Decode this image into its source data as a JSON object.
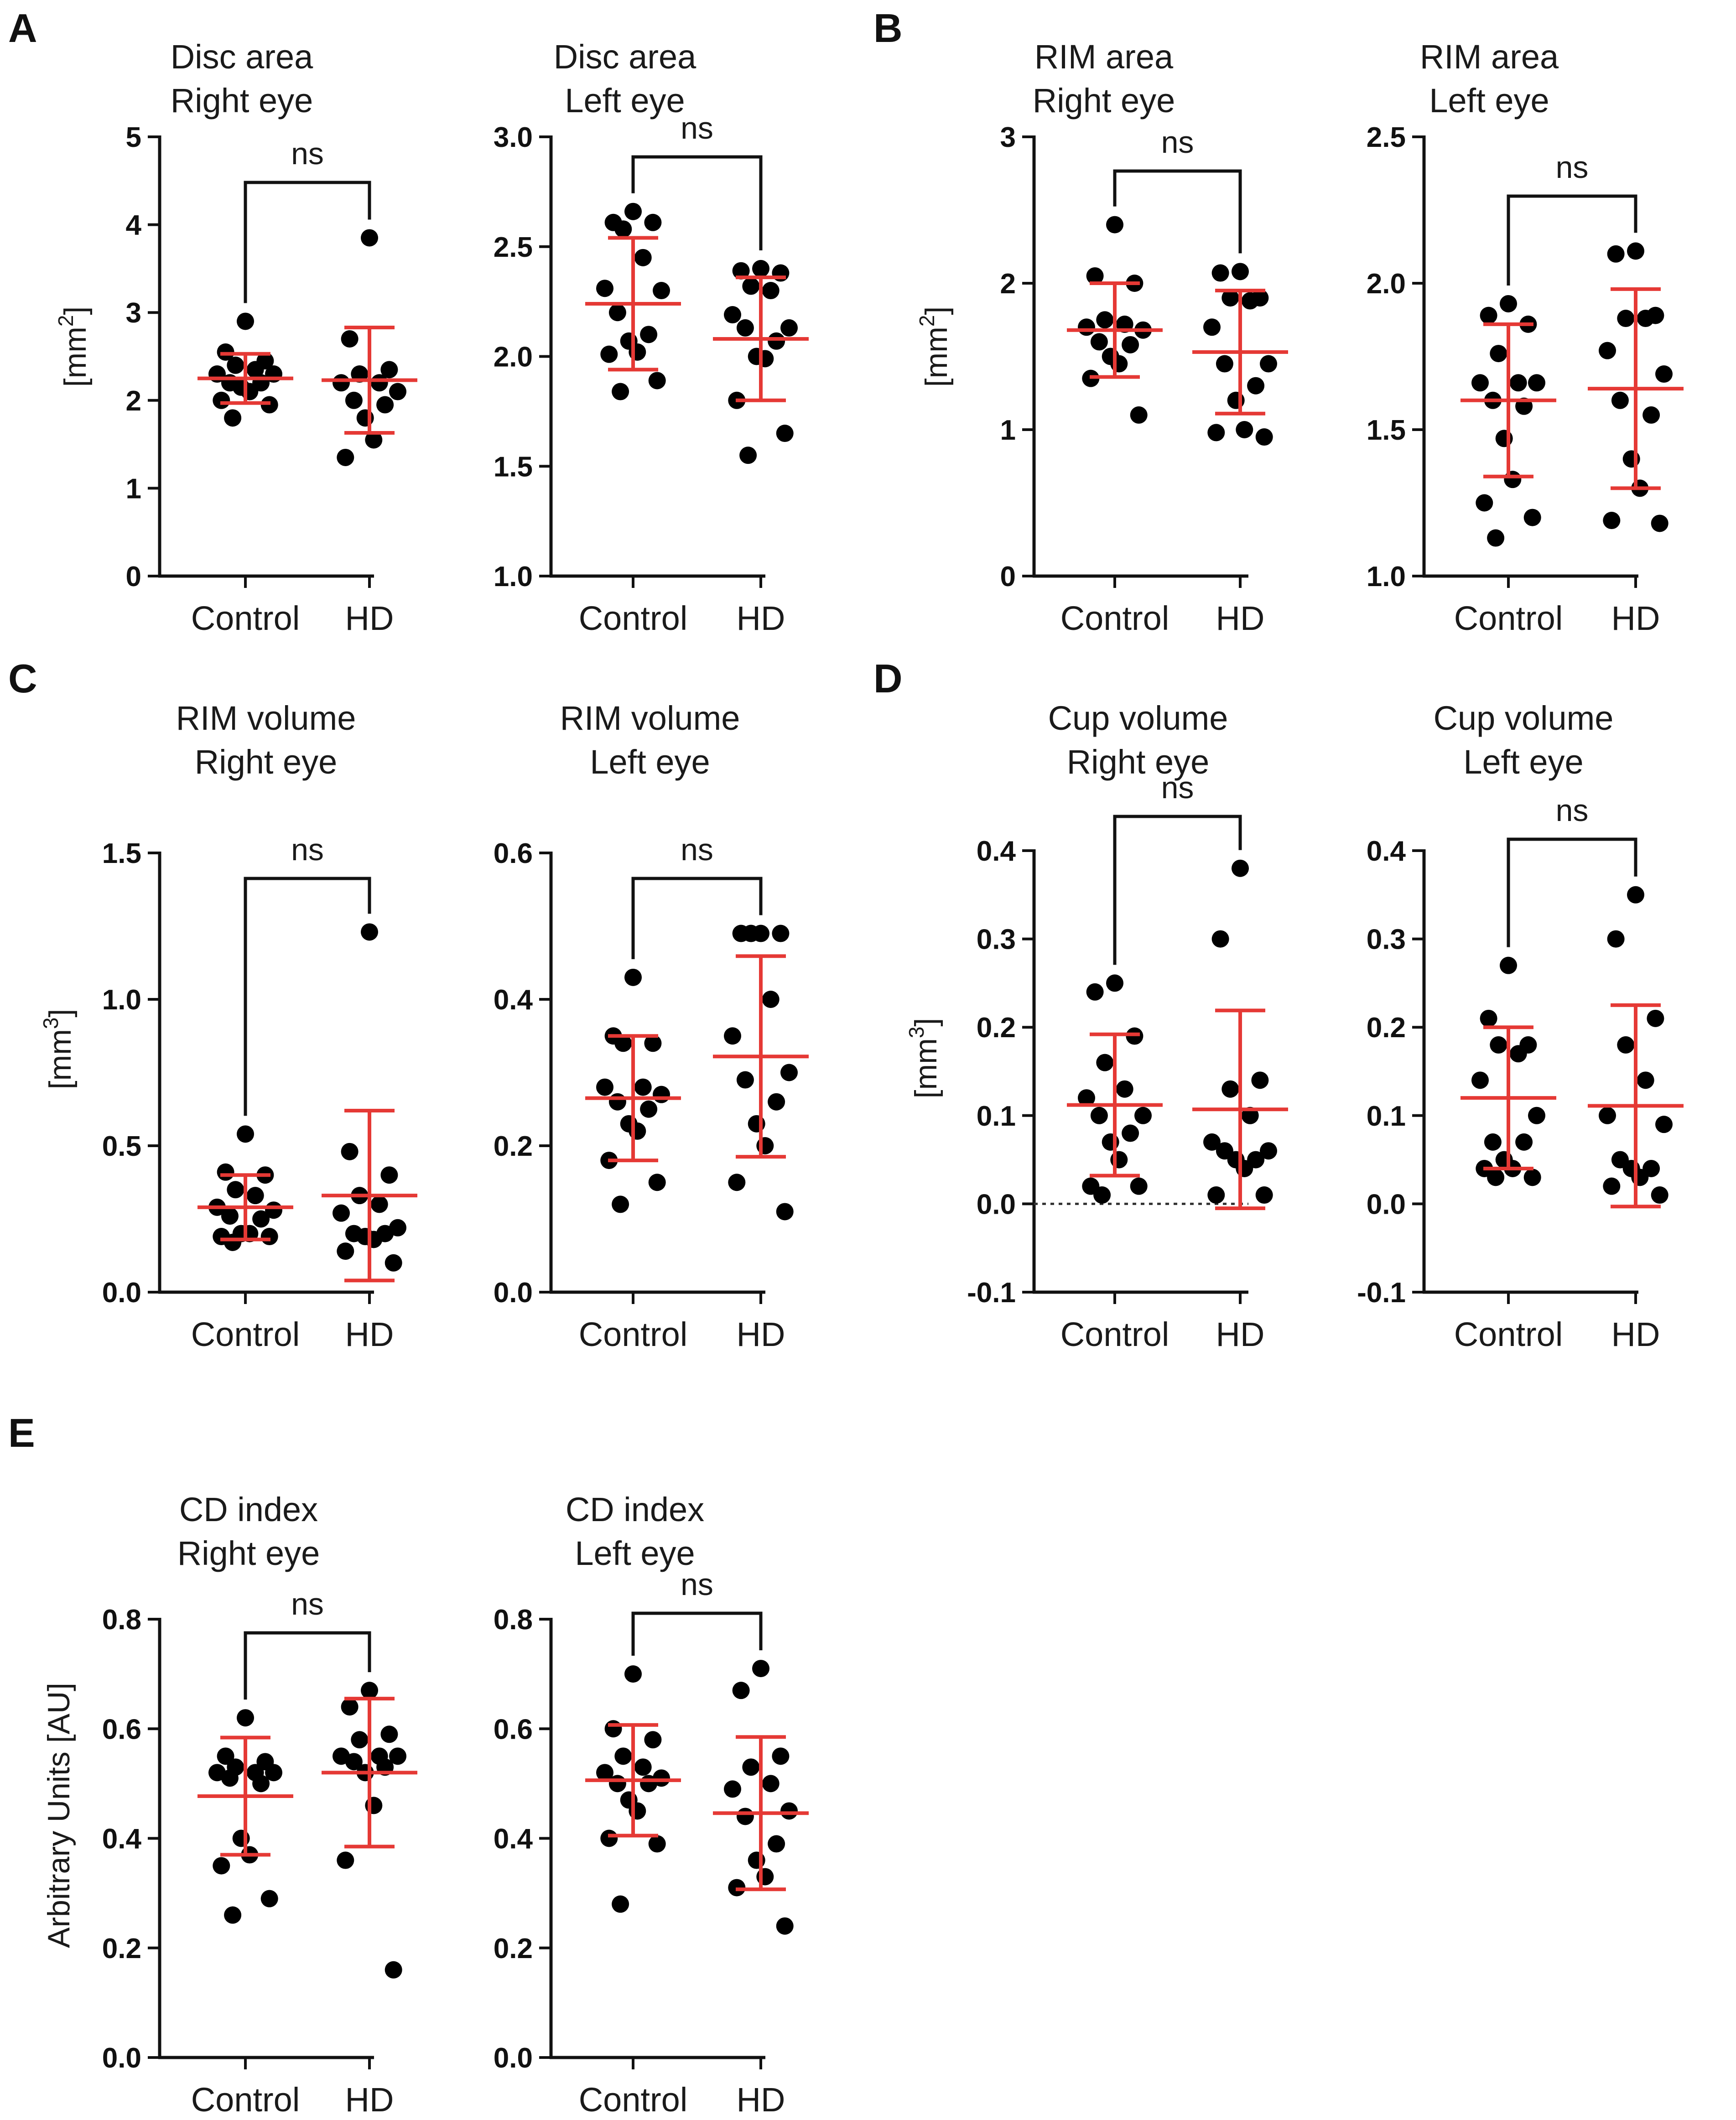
{
  "figure": {
    "category_labels": [
      "Control",
      "HD"
    ],
    "significance_label": "ns",
    "colors": {
      "points": "#000000",
      "error_bars": "#e53935",
      "axes": "#111111"
    }
  },
  "panels": [
    {
      "letter": "A"
    },
    {
      "letter": "B"
    },
    {
      "letter": "C"
    },
    {
      "letter": "D"
    },
    {
      "letter": "E"
    }
  ],
  "y_labels": {
    "area": {
      "main": "[mm",
      "sup": "2",
      "close": "]"
    },
    "volume": {
      "main": "[mm",
      "sup": "3",
      "close": "]"
    },
    "au": {
      "main": "Arbitrary Units [AU]"
    }
  },
  "chart_data": [
    {
      "id": "disc-area-right",
      "type": "scatter",
      "panel": "A",
      "title": [
        "Disc area",
        "Right eye"
      ],
      "ylabel": "[mm2]",
      "ylim": [
        0,
        5
      ],
      "yticks": [
        "0",
        "1",
        "2",
        "3",
        "4",
        "5"
      ],
      "ytick_values": [
        0,
        1,
        2,
        3,
        4,
        5
      ],
      "categories": [
        "Control",
        "HD"
      ],
      "significance": "ns",
      "zero_line": false,
      "series": [
        {
          "name": "Control",
          "values": [
            2.9,
            2.55,
            2.45,
            2.4,
            2.35,
            2.3,
            2.3,
            2.2,
            2.2,
            2.15,
            2.1,
            2.0,
            1.95,
            1.8
          ],
          "mean": 2.25,
          "sd": 0.28
        },
        {
          "name": "HD",
          "values": [
            3.85,
            2.7,
            2.35,
            2.3,
            2.2,
            2.2,
            2.1,
            2.0,
            1.95,
            1.8,
            1.55,
            1.35
          ],
          "mean": 2.23,
          "sd": 0.6
        }
      ]
    },
    {
      "id": "disc-area-left",
      "type": "scatter",
      "panel": "A",
      "title": [
        "Disc area",
        "Left eye"
      ],
      "ylabel": "",
      "ylim": [
        1.0,
        3.0
      ],
      "yticks": [
        "1.0",
        "1.5",
        "2.0",
        "2.5",
        "3.0"
      ],
      "ytick_values": [
        1.0,
        1.5,
        2.0,
        2.5,
        3.0
      ],
      "categories": [
        "Control",
        "HD"
      ],
      "significance": "ns",
      "zero_line": false,
      "series": [
        {
          "name": "Control",
          "values": [
            2.66,
            2.61,
            2.61,
            2.58,
            2.45,
            2.31,
            2.3,
            2.2,
            2.1,
            2.07,
            2.02,
            2.01,
            1.89,
            1.84
          ],
          "mean": 2.24,
          "sd": 0.3
        },
        {
          "name": "HD",
          "values": [
            2.4,
            2.39,
            2.38,
            2.32,
            2.3,
            2.19,
            2.13,
            2.13,
            2.07,
            2.0,
            1.99,
            1.8,
            1.65,
            1.55
          ],
          "mean": 2.08,
          "sd": 0.28
        }
      ]
    },
    {
      "id": "rim-area-right",
      "type": "scatter",
      "panel": "B",
      "title": [
        "RIM area",
        "Right eye"
      ],
      "ylabel": "[mm2]",
      "ylim": [
        0,
        3
      ],
      "yticks": [
        "0",
        "1",
        "2",
        "3"
      ],
      "ytick_values": [
        0,
        1,
        2,
        3
      ],
      "categories": [
        "Control",
        "HD"
      ],
      "significance": "ns",
      "zero_line": false,
      "series": [
        {
          "name": "Control",
          "values": [
            2.4,
            2.05,
            2.0,
            1.75,
            1.72,
            1.7,
            1.68,
            1.6,
            1.58,
            1.5,
            1.45,
            1.35,
            1.1
          ],
          "mean": 1.68,
          "sd": 0.32
        },
        {
          "name": "HD",
          "values": [
            2.08,
            2.07,
            1.9,
            1.9,
            1.88,
            1.7,
            1.45,
            1.45,
            1.3,
            1.2,
            1.0,
            0.98,
            0.95
          ],
          "mean": 1.53,
          "sd": 0.42
        }
      ]
    },
    {
      "id": "rim-area-left",
      "type": "scatter",
      "panel": "B",
      "title": [
        "RIM area",
        "Left eye"
      ],
      "ylabel": "",
      "ylim": [
        1.0,
        2.5
      ],
      "yticks": [
        "1.0",
        "1.5",
        "2.0",
        "2.5"
      ],
      "ytick_values": [
        1.0,
        1.5,
        2.0,
        2.5
      ],
      "categories": [
        "Control",
        "HD"
      ],
      "significance": "ns",
      "zero_line": false,
      "series": [
        {
          "name": "Control",
          "values": [
            1.93,
            1.89,
            1.86,
            1.76,
            1.66,
            1.66,
            1.66,
            1.6,
            1.58,
            1.47,
            1.33,
            1.25,
            1.2,
            1.13
          ],
          "mean": 1.6,
          "sd": 0.26
        },
        {
          "name": "HD",
          "values": [
            2.11,
            2.1,
            1.89,
            1.88,
            1.88,
            1.77,
            1.69,
            1.6,
            1.55,
            1.4,
            1.3,
            1.19,
            1.18
          ],
          "mean": 1.64,
          "sd": 0.34
        }
      ]
    },
    {
      "id": "rim-volume-right",
      "type": "scatter",
      "panel": "C",
      "title": [
        "RIM volume",
        "Right eye"
      ],
      "ylabel": "[mm3]",
      "ylim": [
        0,
        1.5
      ],
      "yticks": [
        "0.0",
        "0.5",
        "1.0",
        "1.5"
      ],
      "ytick_values": [
        0,
        0.5,
        1.0,
        1.5
      ],
      "categories": [
        "Control",
        "HD"
      ],
      "significance": "ns",
      "zero_line": false,
      "series": [
        {
          "name": "Control",
          "values": [
            0.54,
            0.41,
            0.4,
            0.35,
            0.33,
            0.29,
            0.28,
            0.26,
            0.25,
            0.2,
            0.2,
            0.19,
            0.19,
            0.17
          ],
          "mean": 0.29,
          "sd": 0.11
        },
        {
          "name": "HD",
          "values": [
            1.23,
            0.48,
            0.4,
            0.33,
            0.3,
            0.27,
            0.22,
            0.2,
            0.2,
            0.19,
            0.18,
            0.14,
            0.1
          ],
          "mean": 0.33,
          "sd": 0.29
        }
      ]
    },
    {
      "id": "rim-volume-left",
      "type": "scatter",
      "panel": "C",
      "title": [
        "RIM volume",
        "Left eye"
      ],
      "ylabel": "",
      "ylim": [
        0,
        0.6
      ],
      "yticks": [
        "0.0",
        "0.2",
        "0.4",
        "0.6"
      ],
      "ytick_values": [
        0,
        0.2,
        0.4,
        0.6
      ],
      "categories": [
        "Control",
        "HD"
      ],
      "significance": "ns",
      "zero_line": false,
      "series": [
        {
          "name": "Control",
          "values": [
            0.43,
            0.35,
            0.34,
            0.34,
            0.28,
            0.28,
            0.27,
            0.26,
            0.25,
            0.23,
            0.22,
            0.18,
            0.15,
            0.12
          ],
          "mean": 0.265,
          "sd": 0.085
        },
        {
          "name": "HD",
          "values": [
            0.49,
            0.49,
            0.49,
            0.49,
            0.4,
            0.35,
            0.3,
            0.29,
            0.26,
            0.23,
            0.2,
            0.15,
            0.11
          ],
          "mean": 0.322,
          "sd": 0.137
        }
      ]
    },
    {
      "id": "cup-volume-right",
      "type": "scatter",
      "panel": "D",
      "title": [
        "Cup volume",
        "Right eye"
      ],
      "ylabel": "[mm3]",
      "ylim": [
        -0.1,
        0.4
      ],
      "yticks": [
        "-0.1",
        "0.0",
        "0.1",
        "0.2",
        "0.3",
        "0.4"
      ],
      "ytick_values": [
        -0.1,
        0,
        0.1,
        0.2,
        0.3,
        0.4
      ],
      "categories": [
        "Control",
        "HD"
      ],
      "significance": "ns",
      "zero_line": true,
      "series": [
        {
          "name": "Control",
          "values": [
            0.25,
            0.24,
            0.19,
            0.16,
            0.13,
            0.12,
            0.1,
            0.1,
            0.08,
            0.07,
            0.05,
            0.02,
            0.02,
            0.01
          ],
          "mean": 0.112,
          "sd": 0.08
        },
        {
          "name": "HD",
          "values": [
            0.38,
            0.3,
            0.14,
            0.13,
            0.1,
            0.07,
            0.06,
            0.06,
            0.05,
            0.05,
            0.04,
            0.01,
            0.01
          ],
          "mean": 0.107,
          "sd": 0.112
        }
      ]
    },
    {
      "id": "cup-volume-left",
      "type": "scatter",
      "panel": "D",
      "title": [
        "Cup volume",
        "Left eye"
      ],
      "ylabel": "",
      "ylim": [
        -0.1,
        0.4
      ],
      "yticks": [
        "-0.1",
        "0.0",
        "0.1",
        "0.2",
        "0.3",
        "0.4"
      ],
      "ytick_values": [
        -0.1,
        0,
        0.1,
        0.2,
        0.3,
        0.4
      ],
      "categories": [
        "Control",
        "HD"
      ],
      "significance": "ns",
      "zero_line": false,
      "series": [
        {
          "name": "Control",
          "values": [
            0.27,
            0.21,
            0.18,
            0.18,
            0.17,
            0.14,
            0.1,
            0.07,
            0.07,
            0.05,
            0.04,
            0.04,
            0.03,
            0.03
          ],
          "mean": 0.12,
          "sd": 0.08
        },
        {
          "name": "HD",
          "values": [
            0.35,
            0.3,
            0.21,
            0.18,
            0.14,
            0.1,
            0.09,
            0.05,
            0.04,
            0.04,
            0.03,
            0.02,
            0.01
          ],
          "mean": 0.111,
          "sd": 0.114
        }
      ]
    },
    {
      "id": "cd-index-right",
      "type": "scatter",
      "panel": "E",
      "title": [
        "CD index",
        "Right eye"
      ],
      "ylabel": "Arbitrary Units [AU]",
      "ylim": [
        0,
        0.8
      ],
      "yticks": [
        "0.0",
        "0.2",
        "0.4",
        "0.6",
        "0.8"
      ],
      "ytick_values": [
        0,
        0.2,
        0.4,
        0.6,
        0.8
      ],
      "categories": [
        "Control",
        "HD"
      ],
      "significance": "ns",
      "zero_line": false,
      "series": [
        {
          "name": "Control",
          "values": [
            0.62,
            0.55,
            0.54,
            0.53,
            0.52,
            0.52,
            0.52,
            0.51,
            0.5,
            0.4,
            0.37,
            0.35,
            0.29,
            0.26
          ],
          "mean": 0.477,
          "sd": 0.107
        },
        {
          "name": "HD",
          "values": [
            0.67,
            0.64,
            0.59,
            0.58,
            0.55,
            0.55,
            0.55,
            0.54,
            0.53,
            0.52,
            0.46,
            0.36,
            0.16
          ],
          "mean": 0.52,
          "sd": 0.135
        }
      ]
    },
    {
      "id": "cd-index-left",
      "type": "scatter",
      "panel": "E",
      "title": [
        "CD index",
        "Left eye"
      ],
      "ylabel": "",
      "ylim": [
        0,
        0.8
      ],
      "yticks": [
        "0.0",
        "0.2",
        "0.4",
        "0.6",
        "0.8"
      ],
      "ytick_values": [
        0,
        0.2,
        0.4,
        0.6,
        0.8
      ],
      "categories": [
        "Control",
        "HD"
      ],
      "significance": "ns",
      "zero_line": false,
      "series": [
        {
          "name": "Control",
          "values": [
            0.7,
            0.6,
            0.58,
            0.55,
            0.53,
            0.52,
            0.51,
            0.5,
            0.5,
            0.47,
            0.45,
            0.4,
            0.39,
            0.28
          ],
          "mean": 0.506,
          "sd": 0.101
        },
        {
          "name": "HD",
          "values": [
            0.71,
            0.67,
            0.55,
            0.53,
            0.5,
            0.49,
            0.45,
            0.44,
            0.39,
            0.36,
            0.33,
            0.31,
            0.24
          ],
          "mean": 0.446,
          "sd": 0.139
        }
      ]
    }
  ]
}
